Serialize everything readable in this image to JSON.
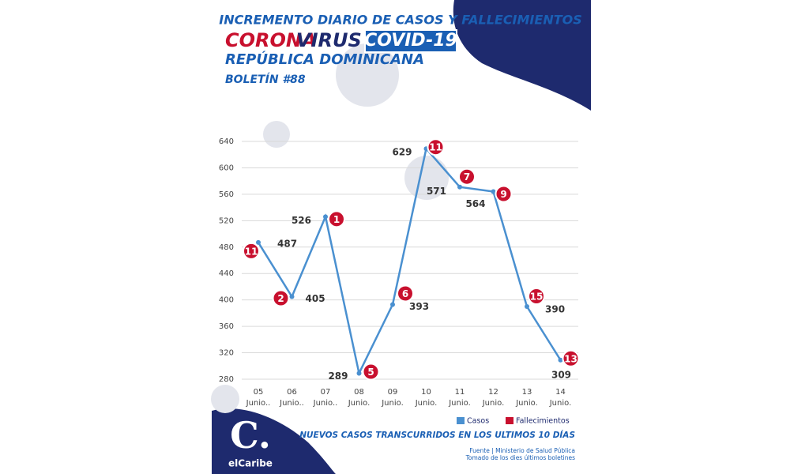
{
  "chart_data": {
    "type": "line",
    "title": "INCREMENTO DIARIO DE CASOS Y FALLECIMIENTOS",
    "brand": {
      "corona": "CORONA",
      "virus": "VIRUS",
      "covid": "COVID-19"
    },
    "subtitle": "REPÚBLICA DOMINICANA",
    "bulletin": "BOLETÍN #88",
    "categories": [
      "05",
      "06",
      "07",
      "08",
      "09",
      "10",
      "11",
      "12",
      "13",
      "14"
    ],
    "category_sublabels": [
      "Junio..",
      "Junio..",
      "Junio..",
      "Junio.",
      "Junio.",
      "Junio.",
      "Junio.",
      "Junio.",
      "Junio.",
      "Junio."
    ],
    "series": [
      {
        "name": "Casos",
        "color": "#4a90d0",
        "values": [
          487,
          405,
          526,
          289,
          393,
          629,
          571,
          564,
          390,
          309
        ]
      },
      {
        "name": "Fallecimientos",
        "color": "#c8102e",
        "values": [
          11,
          2,
          1,
          5,
          6,
          11,
          7,
          9,
          15,
          13
        ]
      }
    ],
    "ylim": [
      280,
      640
    ],
    "yticks": [
      280,
      320,
      360,
      400,
      440,
      480,
      520,
      560,
      600,
      640
    ],
    "grid": true,
    "footer_note": "NUEVOS CASOS TRANSCURRIDOS EN LOS ULTIMOS 10 DÍAS",
    "source": "Fuente | Ministerio de Salud Pública",
    "source_note": "Tomado de  los dies últimos boletines"
  },
  "logo": {
    "letter": "C.",
    "name": "elCaribe"
  }
}
